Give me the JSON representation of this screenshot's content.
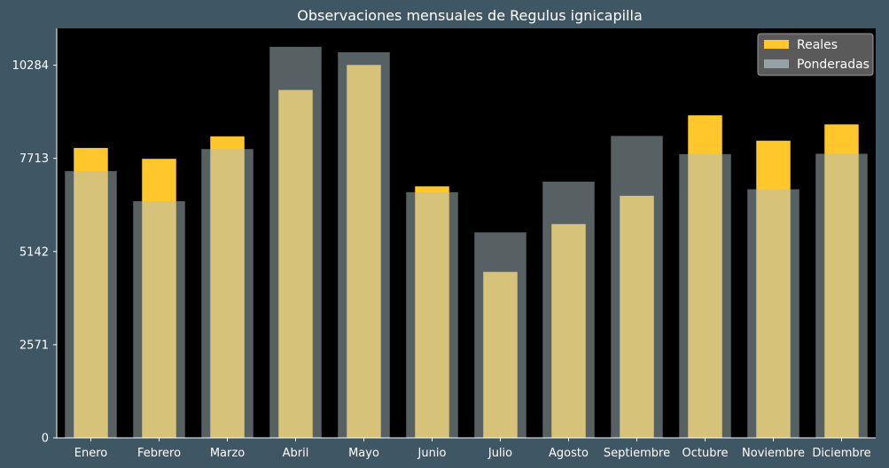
{
  "chart_data": {
    "type": "bar",
    "title": "Observaciones mensuales de Regulus ignicapilla",
    "xlabel": "",
    "ylabel": "",
    "categories": [
      "Enero",
      "Febrero",
      "Marzo",
      "Abril",
      "Mayo",
      "Junio",
      "Julio",
      "Agosto",
      "Septiembre",
      "Octubre",
      "Noviembre",
      "Diciembre"
    ],
    "yticks": [
      0,
      2571,
      5142,
      7713,
      10284
    ],
    "ylim": [
      0,
      11300
    ],
    "grid": false,
    "legend_position": "top-right",
    "series": [
      {
        "name": "Reales",
        "color": "#ffc72c",
        "values": [
          8000,
          7700,
          8320,
          9600,
          10290,
          6940,
          4580,
          5900,
          6680,
          8900,
          8200,
          8650
        ]
      },
      {
        "name": "Ponderadas",
        "color": "#adbfc5",
        "values": [
          7360,
          6530,
          7970,
          10790,
          10640,
          6780,
          5670,
          7070,
          8330,
          7830,
          6860,
          7840
        ]
      }
    ],
    "colors": {
      "page_background": "#3f5664",
      "plot_background": "#000000",
      "text": "#ffffff",
      "legend_background": "#5a5a5a"
    }
  }
}
